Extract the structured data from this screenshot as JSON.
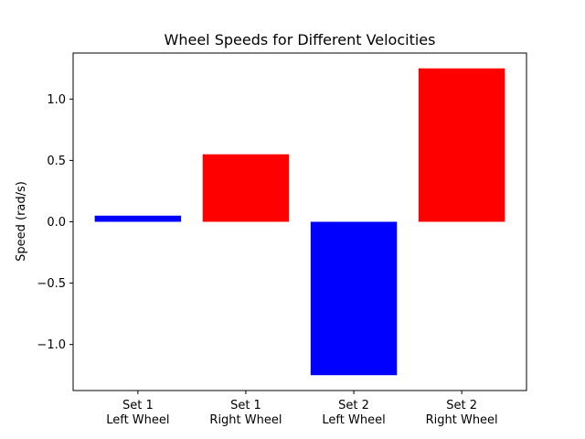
{
  "chart_data": {
    "type": "bar",
    "title": "Wheel Speeds for Different Velocities",
    "xlabel": "",
    "ylabel": "Speed (rad/s)",
    "categories": [
      [
        "Set 1",
        "Left Wheel"
      ],
      [
        "Set 1",
        "Right Wheel"
      ],
      [
        "Set 2",
        "Left Wheel"
      ],
      [
        "Set 2",
        "Right Wheel"
      ]
    ],
    "values": [
      0.05,
      0.55,
      -1.25,
      1.25
    ],
    "colors": [
      "#0000ff",
      "#ff0000",
      "#0000ff",
      "#ff0000"
    ],
    "ylim": [
      -1.375,
      1.375
    ],
    "yticks": [
      -1.0,
      -0.5,
      0.0,
      0.5,
      1.0
    ],
    "ytick_labels": [
      "−1.0",
      "−0.5",
      "0.0",
      "0.5",
      "1.0"
    ],
    "grid": false,
    "legend": "none"
  }
}
